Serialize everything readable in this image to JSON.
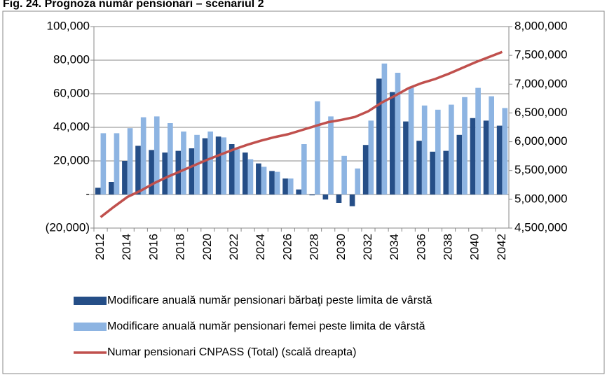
{
  "chart_data": {
    "type": "bar_line",
    "title": "Fig. 24. Prognoza număr pensionari – scenariul 2",
    "categories": [
      "2012",
      null,
      "2014",
      null,
      "2016",
      null,
      "2018",
      null,
      "2020",
      null,
      "2022",
      null,
      "2024",
      null,
      "2026",
      null,
      "2028",
      null,
      "2030",
      null,
      "2032",
      null,
      "2034",
      null,
      "2036",
      null,
      "2038",
      null,
      "2040",
      null,
      "2042"
    ],
    "ylim": [
      -20000,
      100000
    ],
    "yticks": [
      {
        "value": -20000,
        "label": "(20,000)"
      },
      {
        "value": 0,
        "label": "-"
      },
      {
        "value": 20000,
        "label": "20,000"
      },
      {
        "value": 40000,
        "label": "40,000"
      },
      {
        "value": 60000,
        "label": "60,000"
      },
      {
        "value": 80000,
        "label": "80,000"
      },
      {
        "value": 100000,
        "label": "100,000"
      }
    ],
    "y2lim": [
      4500000,
      8000000
    ],
    "y2ticks": [
      {
        "value": 4500000,
        "label": "4,500,000"
      },
      {
        "value": 5000000,
        "label": "5,000,000"
      },
      {
        "value": 5500000,
        "label": "5,500,000"
      },
      {
        "value": 6000000,
        "label": "6,000,000"
      },
      {
        "value": 6500000,
        "label": "6,500,000"
      },
      {
        "value": 7000000,
        "label": "7,000,000"
      },
      {
        "value": 7500000,
        "label": "7,500,000"
      },
      {
        "value": 8000000,
        "label": "8,000,000"
      }
    ],
    "grid": true,
    "series": [
      {
        "name": "Modificare anuală număr pensionari bărbaţi peste limita de vârstă",
        "type": "bar",
        "color": "#254e87",
        "values": [
          4000,
          7500,
          20000,
          29000,
          26500,
          25000,
          26000,
          27500,
          33500,
          34500,
          30000,
          25000,
          18500,
          14000,
          9500,
          3000,
          -500,
          -3000,
          -5000,
          -7000,
          29500,
          69000,
          61000,
          43500,
          32000,
          25500,
          26000,
          35500,
          45500,
          44000,
          41000
        ]
      },
      {
        "name": "Modificare anuală număr pensionari femei peste limita de vârstă",
        "type": "bar",
        "color": "#8db4e2",
        "values": [
          36500,
          36500,
          39500,
          46000,
          46500,
          42500,
          37500,
          35500,
          37500,
          34000,
          27000,
          21000,
          16500,
          13500,
          9500,
          30000,
          55500,
          46500,
          23000,
          15500,
          44000,
          78000,
          72500,
          64000,
          53000,
          50500,
          53500,
          58000,
          63500,
          58500,
          51500
        ]
      },
      {
        "name": "Numar pensionari CNPASS (Total) (scală dreapta)",
        "type": "line",
        "axis": "y2",
        "color": "#c0504d",
        "values": [
          4690000,
          4870000,
          5040000,
          5150000,
          5280000,
          5390000,
          5490000,
          5590000,
          5690000,
          5780000,
          5870000,
          5950000,
          6020000,
          6080000,
          6130000,
          6200000,
          6270000,
          6340000,
          6380000,
          6430000,
          6530000,
          6680000,
          6800000,
          6930000,
          7020000,
          7090000,
          7180000,
          7280000,
          7380000,
          7470000,
          7560000
        ]
      }
    ]
  }
}
